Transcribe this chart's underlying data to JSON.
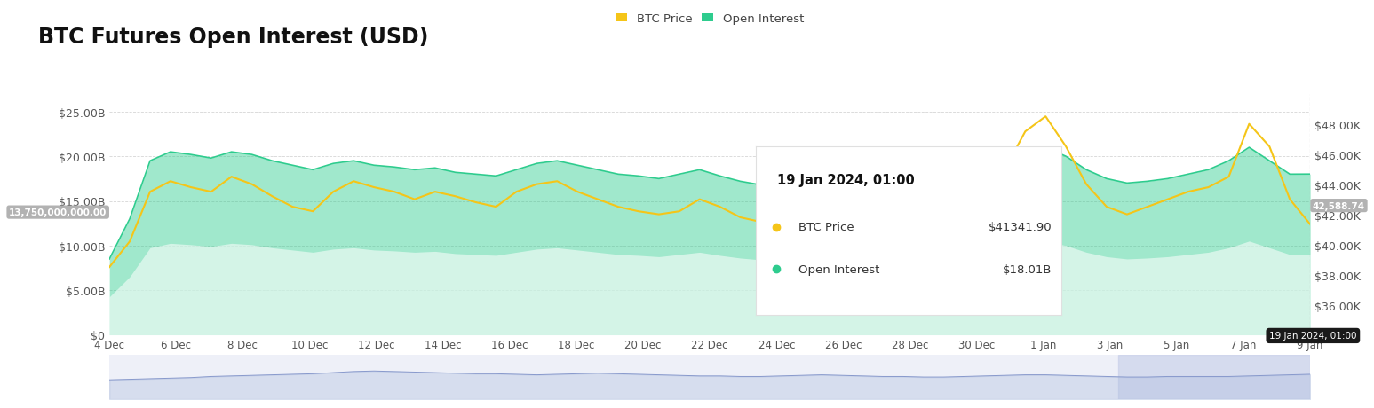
{
  "title": "BTC Futures Open Interest (USD)",
  "title_fontsize": 17,
  "title_fontweight": "bold",
  "background_color": "#ffffff",
  "chart_background": "#ffffff",
  "legend_items": [
    "BTC Price",
    "Open Interest"
  ],
  "legend_colors": [
    "#f5c518",
    "#2ecc8e"
  ],
  "left_yticks": [
    "$0",
    "$5.00B",
    "$10.00B",
    "$15.00B",
    "$20.00B",
    "$25.00B"
  ],
  "left_yvalues": [
    0,
    5000000000,
    10000000000,
    15000000000,
    20000000000,
    25000000000
  ],
  "right_yticks": [
    "$36.00K",
    "$38.00K",
    "$40.00K",
    "$42.00K",
    "$44.00K",
    "$46.00K",
    "$48.00K"
  ],
  "right_yvalues": [
    36000,
    38000,
    40000,
    42000,
    44000,
    46000,
    48000
  ],
  "xtick_labels": [
    "4 Dec",
    "6 Dec",
    "8 Dec",
    "10 Dec",
    "12 Dec",
    "14 Dec",
    "16 Dec",
    "18 Dec",
    "20 Dec",
    "22 Dec",
    "24 Dec",
    "26 Dec",
    "28 Dec",
    "30 Dec",
    "1 Jan",
    "3 Jan",
    "5 Jan",
    "7 Jan",
    "9 Jan"
  ],
  "open_interest_color": "#2ecc8e",
  "btc_price_color": "#f5c518",
  "tooltip_date": "19 Jan 2024, 01:00",
  "tooltip_btc": "$41341.90",
  "tooltip_oi": "$18.01B",
  "crosshair_label_oi": "13,750,000,000.00",
  "crosshair_label_price": "42,588.74",
  "ylim_left": [
    0,
    27000000000
  ],
  "ylim_right": [
    34000,
    50000
  ],
  "open_interest_data": [
    8500000000,
    13000000000,
    19500000000,
    20500000000,
    20200000000,
    19800000000,
    20500000000,
    20200000000,
    19500000000,
    19000000000,
    18500000000,
    19200000000,
    19500000000,
    19000000000,
    18800000000,
    18500000000,
    18700000000,
    18200000000,
    18000000000,
    17800000000,
    18500000000,
    19200000000,
    19500000000,
    19000000000,
    18500000000,
    18000000000,
    17800000000,
    17500000000,
    18000000000,
    18500000000,
    17800000000,
    17200000000,
    16800000000,
    17500000000,
    18000000000,
    17500000000,
    17200000000,
    17000000000,
    17500000000,
    18000000000,
    17500000000,
    17200000000,
    17500000000,
    18000000000,
    19000000000,
    20500000000,
    21000000000,
    20000000000,
    18500000000,
    17500000000,
    17000000000,
    17200000000,
    17500000000,
    18000000000,
    18500000000,
    19500000000,
    21000000000,
    19500000000,
    18000000000,
    18010000000
  ],
  "btc_price_data": [
    38500,
    40200,
    43500,
    44200,
    43800,
    43500,
    44500,
    44000,
    43200,
    42500,
    42200,
    43500,
    44200,
    43800,
    43500,
    43000,
    43500,
    43200,
    42800,
    42500,
    43500,
    44000,
    44200,
    43500,
    43000,
    42500,
    42200,
    42000,
    42200,
    43000,
    42500,
    41800,
    41500,
    42500,
    43200,
    42800,
    42500,
    42300,
    42800,
    43500,
    43000,
    42800,
    43200,
    44000,
    45000,
    47500,
    48500,
    46500,
    44000,
    42500,
    42000,
    42500,
    43000,
    43500,
    43800,
    44500,
    48000,
    46500,
    43000,
    41341
  ],
  "mini_chart_data": [
    0.35,
    0.36,
    0.37,
    0.38,
    0.39,
    0.41,
    0.42,
    0.43,
    0.44,
    0.45,
    0.46,
    0.48,
    0.5,
    0.51,
    0.5,
    0.49,
    0.48,
    0.47,
    0.46,
    0.46,
    0.45,
    0.44,
    0.45,
    0.46,
    0.47,
    0.46,
    0.45,
    0.44,
    0.43,
    0.42,
    0.42,
    0.41,
    0.41,
    0.42,
    0.43,
    0.44,
    0.43,
    0.42,
    0.41,
    0.41,
    0.4,
    0.4,
    0.41,
    0.42,
    0.43,
    0.44,
    0.44,
    0.43,
    0.42,
    0.41,
    0.4,
    0.4,
    0.41,
    0.41,
    0.41,
    0.41,
    0.42,
    0.43,
    0.44,
    0.45
  ]
}
